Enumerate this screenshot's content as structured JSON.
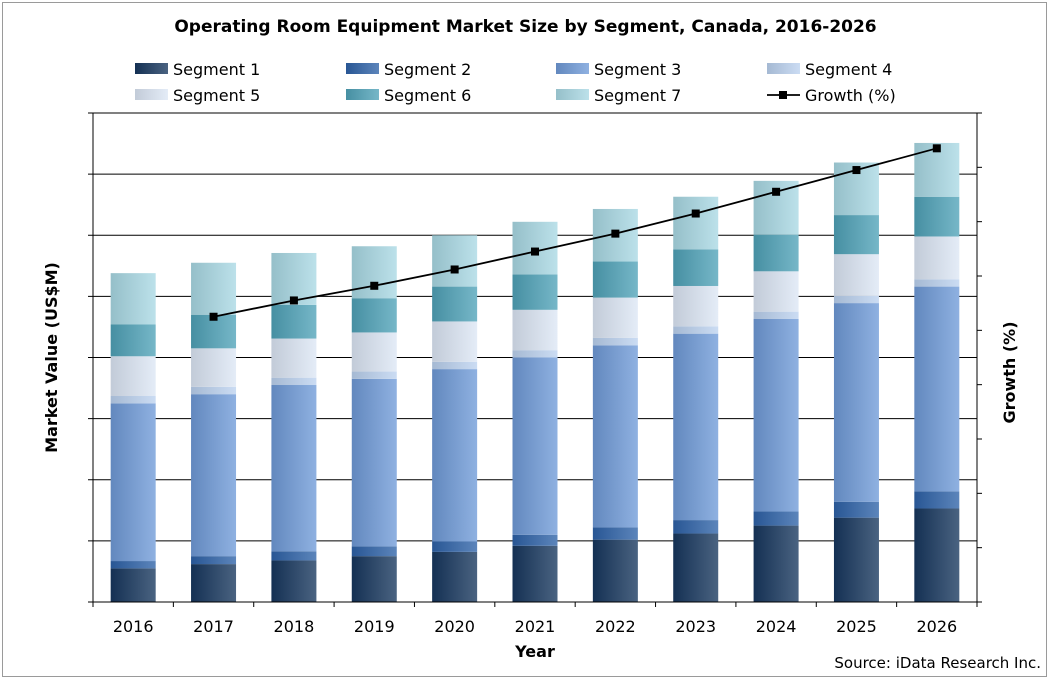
{
  "chart_data": {
    "type": "bar",
    "stacked": true,
    "title": "Operating Room Equipment Market Size by Segment, Canada, 2016-2026",
    "xlabel": "Year",
    "ylabel": "Market Value (US$M)",
    "y2label": "Growth (%)",
    "source": "Source: iData Research Inc.",
    "grid": true,
    "legend_position": "top",
    "categories": [
      "2016",
      "2017",
      "2018",
      "2019",
      "2020",
      "2021",
      "2022",
      "2023",
      "2024",
      "2025",
      "2026"
    ],
    "ylim": [
      0,
      8
    ],
    "y2lim": [
      0,
      9
    ],
    "series": [
      {
        "name": "Segment 1",
        "color": "#17375e",
        "values": [
          0.55,
          0.62,
          0.68,
          0.75,
          0.82,
          0.92,
          1.02,
          1.12,
          1.25,
          1.38,
          1.53
        ]
      },
      {
        "name": "Segment 2",
        "color": "#2e62a8",
        "values": [
          0.12,
          0.13,
          0.15,
          0.16,
          0.17,
          0.18,
          0.2,
          0.22,
          0.23,
          0.26,
          0.28
        ]
      },
      {
        "name": "Segment 3",
        "color": "#6f9bd8",
        "values": [
          2.58,
          2.65,
          2.72,
          2.74,
          2.82,
          2.9,
          2.98,
          3.05,
          3.15,
          3.25,
          3.35
        ]
      },
      {
        "name": "Segment 4",
        "color": "#bcd2f0",
        "values": [
          0.12,
          0.12,
          0.12,
          0.12,
          0.12,
          0.12,
          0.12,
          0.12,
          0.12,
          0.12,
          0.12
        ]
      },
      {
        "name": "Segment 5",
        "color": "#dde7f5",
        "values": [
          0.65,
          0.63,
          0.64,
          0.64,
          0.66,
          0.66,
          0.66,
          0.66,
          0.66,
          0.68,
          0.7
        ]
      },
      {
        "name": "Segment 6",
        "color": "#4fa3b8",
        "values": [
          0.52,
          0.55,
          0.55,
          0.56,
          0.57,
          0.58,
          0.59,
          0.6,
          0.6,
          0.64,
          0.65
        ]
      },
      {
        "name": "Segment 7",
        "color": "#a9d9e4",
        "values": [
          0.84,
          0.85,
          0.85,
          0.85,
          0.84,
          0.86,
          0.86,
          0.86,
          0.88,
          0.86,
          0.88
        ]
      }
    ],
    "line_series": {
      "name": "Growth (%)",
      "color": "#000000",
      "values": [
        null,
        5.25,
        5.55,
        5.82,
        6.12,
        6.45,
        6.78,
        7.15,
        7.55,
        7.95,
        8.35
      ]
    }
  }
}
